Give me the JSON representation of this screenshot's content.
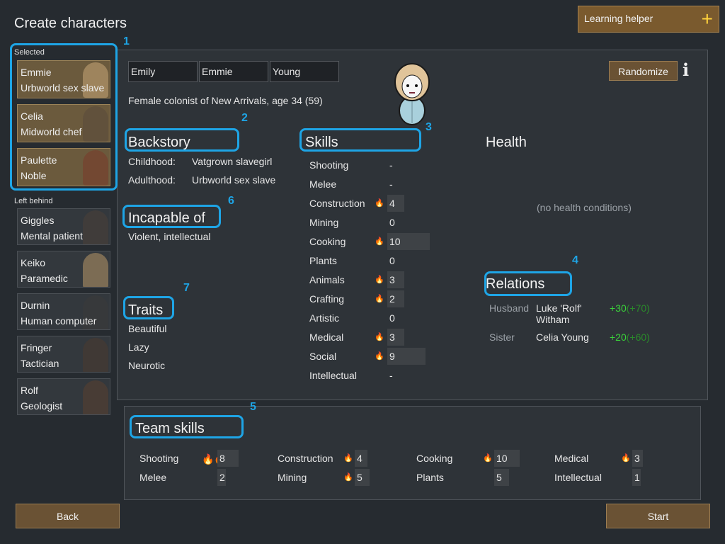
{
  "page": {
    "title": "Create characters"
  },
  "helper": {
    "label": "Learning helper",
    "icon": "plus-icon",
    "icon_glyph": "+"
  },
  "annotations": [
    "1",
    "2",
    "3",
    "4",
    "5",
    "6",
    "7"
  ],
  "sidebar": {
    "selected_label": "Selected",
    "left_behind_label": "Left behind",
    "selected": [
      {
        "name": "Emmie",
        "role": "Urbworld sex slave",
        "hair": "#c8a878"
      },
      {
        "name": "Celia",
        "role": "Midworld chef",
        "hair": "#5a4a3c"
      },
      {
        "name": "Paulette",
        "role": "Noble",
        "hair": "#7a3a2a"
      }
    ],
    "left_behind": [
      {
        "name": "Giggles",
        "role": "Mental patient",
        "hair": "#4a4038"
      },
      {
        "name": "Keiko",
        "role": "Paramedic",
        "hair": "#b89868"
      },
      {
        "name": "Durnin",
        "role": "Human computer",
        "hair": "#3a3a3a"
      },
      {
        "name": "Fringer",
        "role": "Tactician",
        "hair": "#4a3a30"
      },
      {
        "name": "Rolf",
        "role": "Geologist",
        "hair": "#5a4030"
      }
    ]
  },
  "character": {
    "first": "Emily",
    "nick": "Emmie",
    "last": "Young",
    "description": "Female colonist of New Arrivals, age 34 (59)",
    "randomize_label": "Randomize",
    "info_icon": "info-icon",
    "info_glyph": "i"
  },
  "backstory": {
    "header": "Backstory",
    "childhood_label": "Childhood:",
    "childhood": "Vatgrown slavegirl",
    "adulthood_label": "Adulthood:",
    "adulthood": "Urbworld sex slave"
  },
  "incapable": {
    "header": "Incapable of",
    "value": "Violent, intellectual"
  },
  "traits": {
    "header": "Traits",
    "items": [
      "Beautiful",
      "Lazy",
      "Neurotic"
    ]
  },
  "skills": {
    "header": "Skills",
    "items": [
      {
        "name": "Shooting",
        "value": "-",
        "passion": "",
        "level": 0
      },
      {
        "name": "Melee",
        "value": "-",
        "passion": "",
        "level": 0
      },
      {
        "name": "Construction",
        "value": "4",
        "passion": "minor",
        "level": 4
      },
      {
        "name": "Mining",
        "value": "0",
        "passion": "",
        "level": 0
      },
      {
        "name": "Cooking",
        "value": "10",
        "passion": "minor",
        "level": 10
      },
      {
        "name": "Plants",
        "value": "0",
        "passion": "",
        "level": 0
      },
      {
        "name": "Animals",
        "value": "3",
        "passion": "minor",
        "level": 3
      },
      {
        "name": "Crafting",
        "value": "2",
        "passion": "minor",
        "level": 2
      },
      {
        "name": "Artistic",
        "value": "0",
        "passion": "",
        "level": 0
      },
      {
        "name": "Medical",
        "value": "3",
        "passion": "minor",
        "level": 3
      },
      {
        "name": "Social",
        "value": "9",
        "passion": "minor",
        "level": 9
      },
      {
        "name": "Intellectual",
        "value": "-",
        "passion": "",
        "level": 0
      }
    ]
  },
  "health": {
    "header": "Health",
    "status": "(no health conditions)"
  },
  "relations": {
    "header": "Relations",
    "items": [
      {
        "type": "Husband",
        "name": "Luke 'Rolf' Witham",
        "opinion": "+30",
        "opinion_other": "(+70)"
      },
      {
        "type": "Sister",
        "name": "Celia Young",
        "opinion": "+20",
        "opinion_other": "(+60)"
      }
    ]
  },
  "team": {
    "header": "Team skills",
    "items": [
      {
        "name": "Shooting",
        "value": "8",
        "passion": "major",
        "level": 8
      },
      {
        "name": "Construction",
        "value": "4",
        "passion": "minor",
        "level": 4
      },
      {
        "name": "Cooking",
        "value": "10",
        "passion": "minor",
        "level": 10
      },
      {
        "name": "Medical",
        "value": "3",
        "passion": "minor",
        "level": 3
      },
      {
        "name": "Melee",
        "value": "2",
        "passion": "",
        "level": 2
      },
      {
        "name": "Mining",
        "value": "5",
        "passion": "minor",
        "level": 5
      },
      {
        "name": "Plants",
        "value": "5",
        "passion": "",
        "level": 5
      },
      {
        "name": "Intellectual",
        "value": "1",
        "passion": "",
        "level": 1
      }
    ]
  },
  "footer": {
    "back_label": "Back",
    "start_label": "Start"
  },
  "colors": {
    "accent": "#1ea5e6",
    "button": "#6a5234",
    "passion": "#ffa828",
    "positive": "#3ad23a"
  }
}
